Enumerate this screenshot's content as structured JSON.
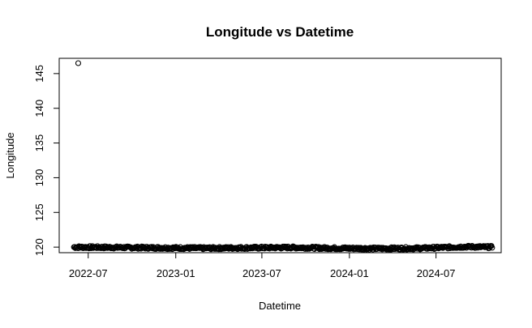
{
  "chart_data": {
    "type": "scatter",
    "title": "Longitude vs Datetime",
    "xlabel": "Datetime",
    "ylabel": "Longitude",
    "x_ticks": [
      "2022-07",
      "2023-01",
      "2023-07",
      "2024-01",
      "2024-07"
    ],
    "y_ticks": [
      120,
      125,
      130,
      135,
      140,
      145
    ],
    "xlim": [
      "2022-05-01",
      "2024-11-15"
    ],
    "ylim": [
      119.2,
      147.2
    ],
    "grid": false,
    "marker": "open-circle",
    "outlier": {
      "x": "2022-06-10",
      "y": 146.5
    },
    "series_trend": [
      {
        "x": "2022-06-01",
        "y": 120.0
      },
      {
        "x": "2022-09-01",
        "y": 119.95
      },
      {
        "x": "2022-12-01",
        "y": 119.9
      },
      {
        "x": "2023-03-01",
        "y": 119.85
      },
      {
        "x": "2023-06-01",
        "y": 119.9
      },
      {
        "x": "2023-09-01",
        "y": 119.95
      },
      {
        "x": "2023-12-01",
        "y": 119.85
      },
      {
        "x": "2024-03-01",
        "y": 119.8
      },
      {
        "x": "2024-06-01",
        "y": 119.85
      },
      {
        "x": "2024-09-01",
        "y": 120.05
      },
      {
        "x": "2024-10-28",
        "y": 120.0
      }
    ]
  },
  "colors": {
    "points": "#000000",
    "axes": "#000000",
    "background": "#ffffff"
  }
}
